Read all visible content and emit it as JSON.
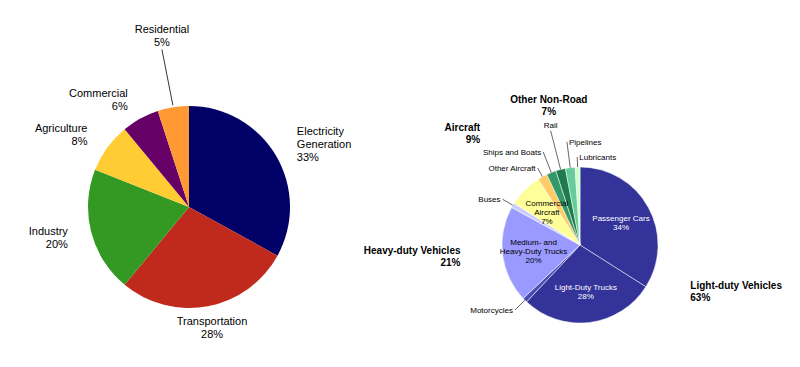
{
  "chart_data": [
    {
      "type": "pie",
      "categories": [
        "Electricity Generation",
        "Transportation",
        "Industry",
        "Agriculture",
        "Commercial",
        "Residential"
      ],
      "values": [
        33,
        28,
        20,
        8,
        6,
        5
      ],
      "value_labels": [
        "33%",
        "28%",
        "20%",
        "8%",
        "6%",
        "5%"
      ],
      "colors": [
        "#000066",
        "#c02a1c",
        "#339922",
        "#ffcc33",
        "#660066",
        "#ff9933"
      ]
    },
    {
      "type": "pie",
      "categories": [
        "Passenger Cars",
        "Light-Duty Trucks",
        "Motorcycles",
        "Medium- and Heavy-Duty Trucks",
        "Buses",
        "Commercial Aircraft",
        "Other Aircraft",
        "Ships and Boats",
        "Rail",
        "Pipelines",
        "Lubricants"
      ],
      "values": [
        34,
        28,
        1,
        20,
        1,
        7,
        2,
        2,
        2,
        2,
        1
      ],
      "value_labels": [
        "34%",
        "28%",
        null,
        "20%",
        null,
        "7%",
        null,
        null,
        null,
        null,
        null
      ],
      "colors": [
        "#333399",
        "#333399",
        "#4b4bb0",
        "#9999ff",
        "#ccccff",
        "#ffff99",
        "#ffcc66",
        "#339966",
        "#1f7a4d",
        "#66cc99",
        "#ccffcc"
      ],
      "groups": {
        "categories": [
          "Light-duty Vehicles",
          "Heavy-duty Vehicles",
          "Aircraft",
          "Other Non-Road"
        ],
        "values": [
          63,
          21,
          9,
          7
        ],
        "value_labels": [
          "63%",
          "21%",
          "9%",
          "7%"
        ]
      }
    }
  ]
}
